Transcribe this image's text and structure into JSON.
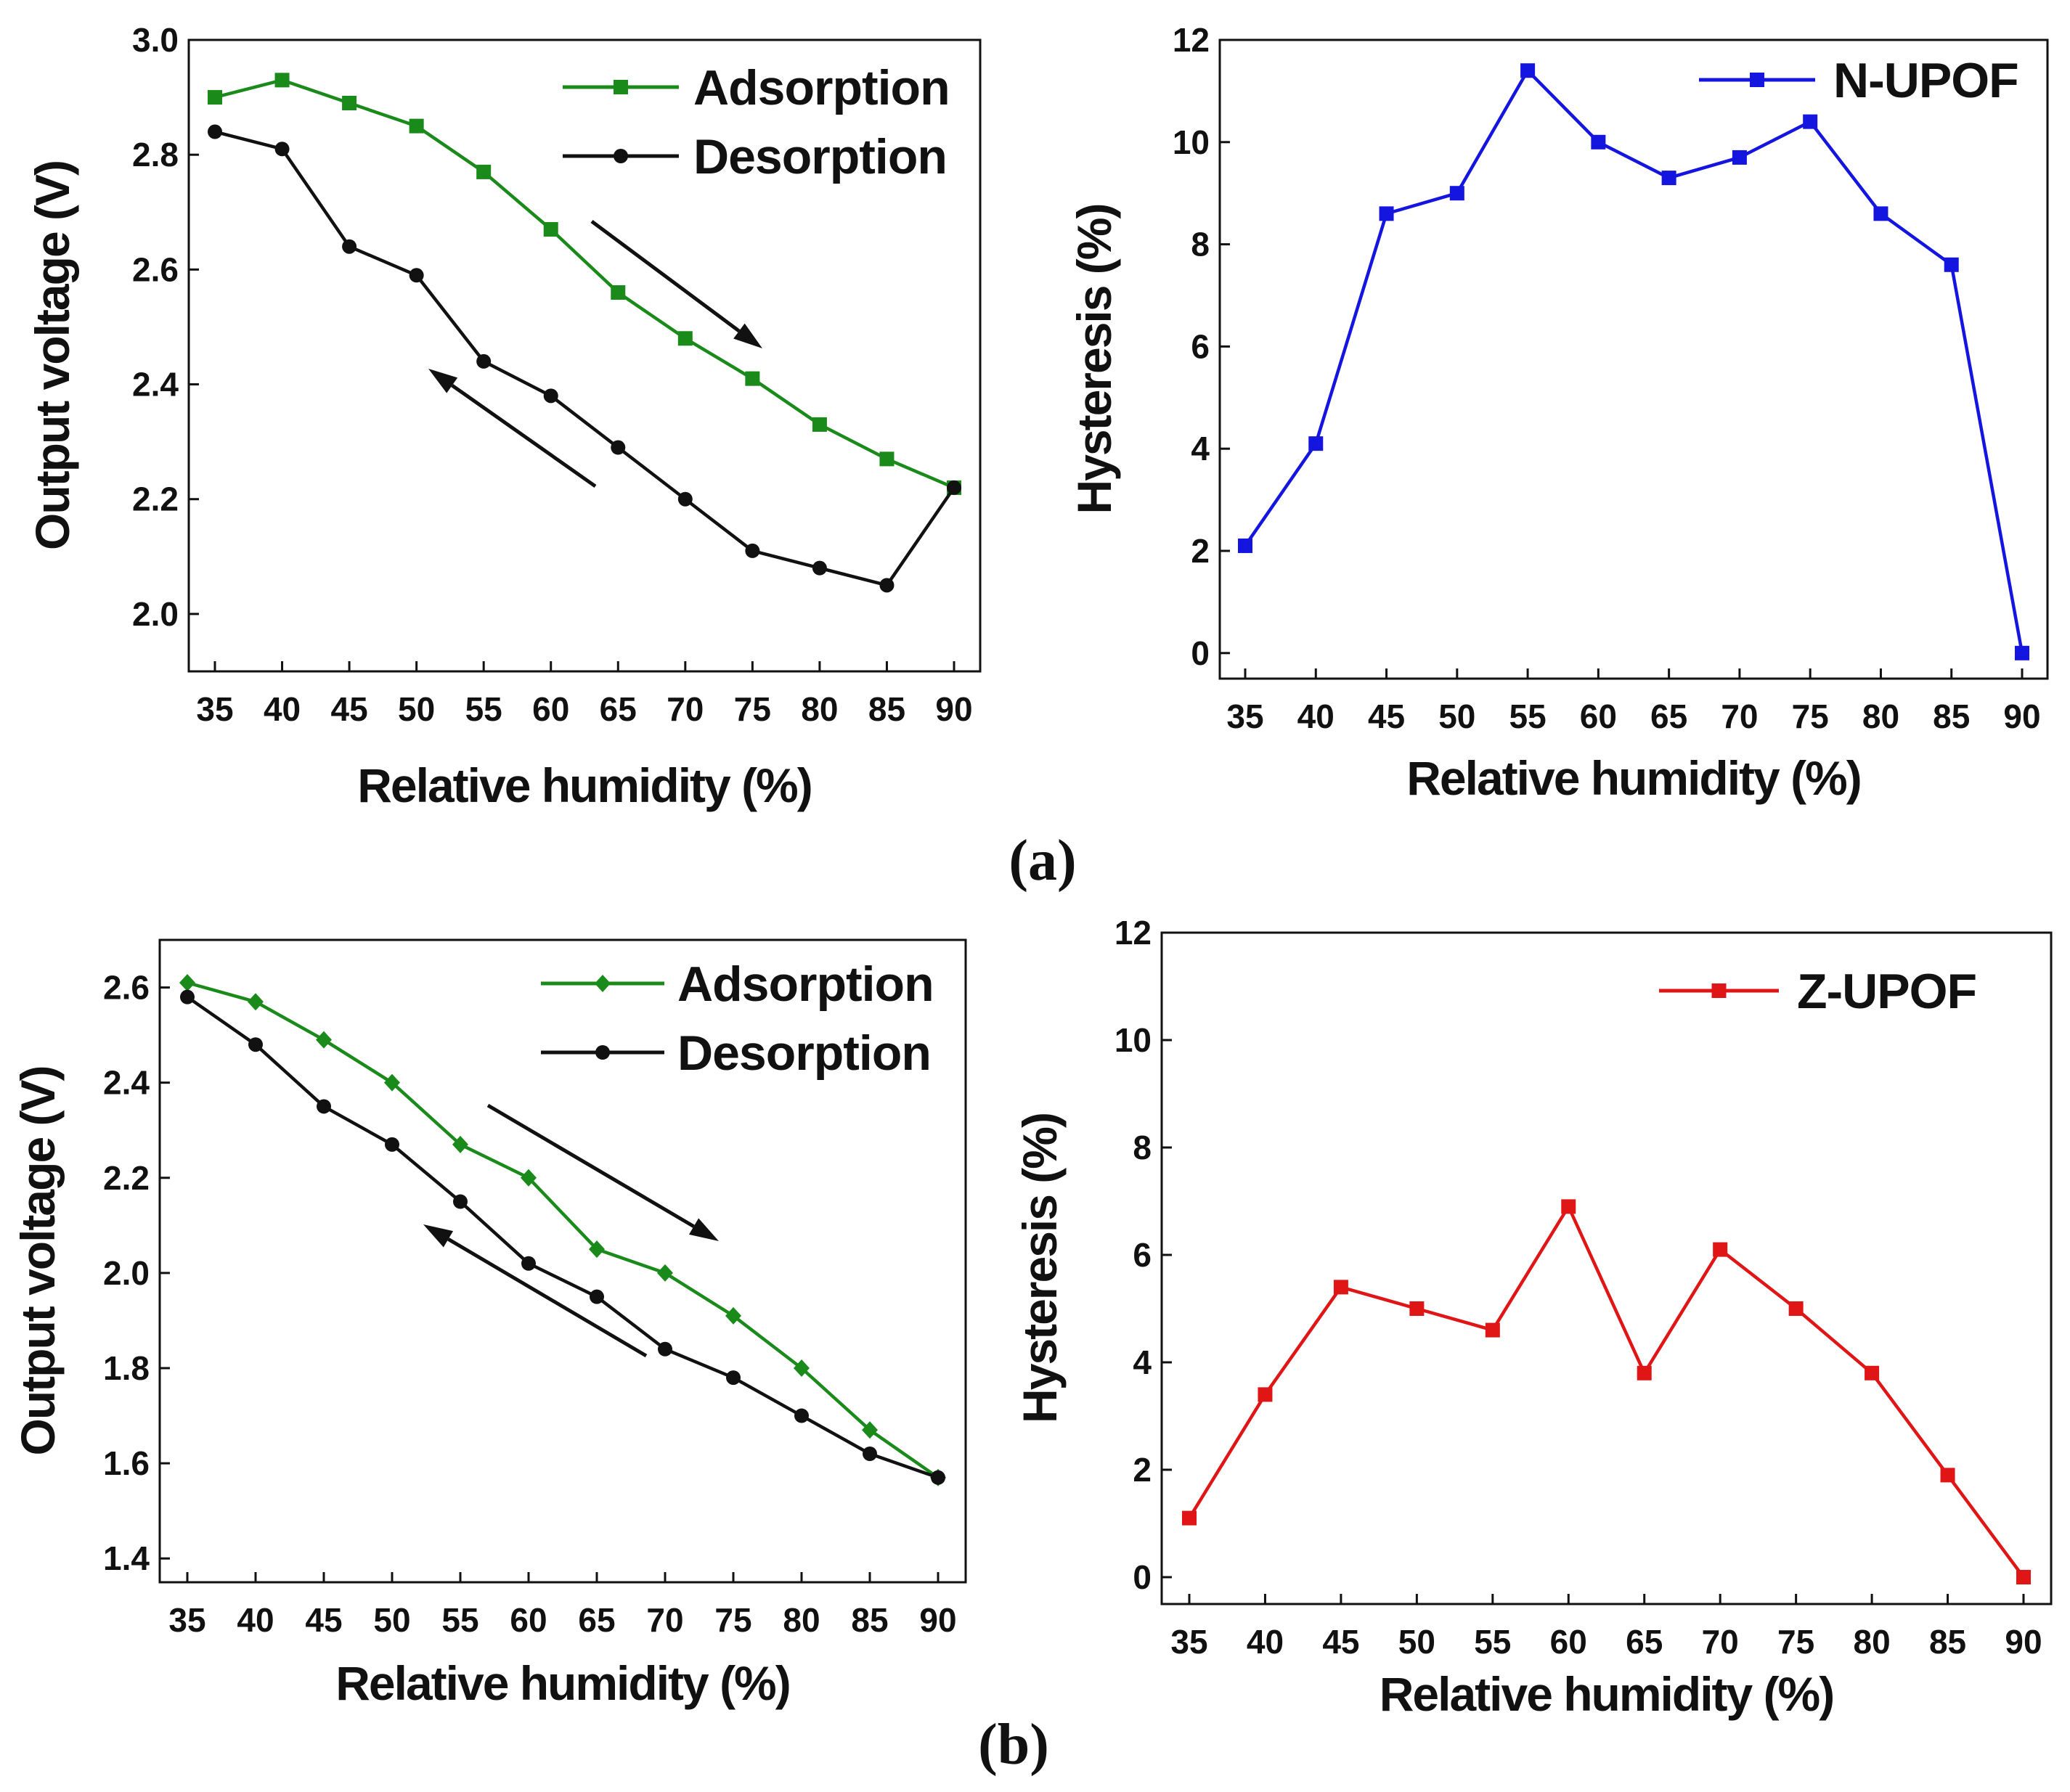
{
  "panel_labels": {
    "a": "(a)",
    "b": "(b)"
  },
  "chart_data": [
    {
      "id": "a-voltage",
      "type": "line",
      "xlabel": "Relative humidity (%)",
      "ylabel": "Output voltage (V)",
      "categories": [
        "35",
        "40",
        "45",
        "50",
        "55",
        "60",
        "65",
        "70",
        "75",
        "80",
        "85",
        "90"
      ],
      "x": [
        35,
        40,
        45,
        50,
        55,
        60,
        65,
        70,
        75,
        80,
        85,
        90
      ],
      "yticks": [
        "2.0",
        "2.2",
        "2.4",
        "2.6",
        "2.8",
        "3.0"
      ],
      "ylim": [
        1.9,
        3.0
      ],
      "legend_position": "top-right",
      "series": [
        {
          "name": "Adsorption",
          "color": "#1a8a1a",
          "marker": "square",
          "values": [
            2.9,
            2.93,
            2.89,
            2.85,
            2.77,
            2.67,
            2.56,
            2.48,
            2.41,
            2.33,
            2.27,
            2.22
          ]
        },
        {
          "name": "Desorption",
          "color": "#111111",
          "marker": "circle",
          "values": [
            2.84,
            2.81,
            2.64,
            2.59,
            2.44,
            2.38,
            2.29,
            2.2,
            2.11,
            2.08,
            2.05,
            2.22
          ]
        }
      ],
      "annotations": [
        {
          "type": "arrow",
          "direction": "down-right",
          "meaning": "increasing humidity (adsorption)"
        },
        {
          "type": "arrow",
          "direction": "up-left",
          "meaning": "decreasing humidity (desorption)"
        }
      ]
    },
    {
      "id": "a-hysteresis",
      "type": "line",
      "xlabel": "Relative humidity (%)",
      "ylabel": "Hysteresis (%)",
      "categories": [
        "35",
        "40",
        "45",
        "50",
        "55",
        "60",
        "65",
        "70",
        "75",
        "80",
        "85",
        "90"
      ],
      "x": [
        35,
        40,
        45,
        50,
        55,
        60,
        65,
        70,
        75,
        80,
        85,
        90
      ],
      "yticks": [
        "0",
        "2",
        "4",
        "6",
        "8",
        "10",
        "12"
      ],
      "ylim": [
        -0.5,
        12
      ],
      "legend_position": "top-right",
      "series": [
        {
          "name": "N-UPOF",
          "color": "#1515e0",
          "marker": "square",
          "values": [
            2.1,
            4.1,
            8.6,
            9.0,
            11.4,
            10.0,
            9.3,
            9.7,
            10.4,
            8.6,
            7.6,
            0.0
          ]
        }
      ]
    },
    {
      "id": "b-voltage",
      "type": "line",
      "xlabel": "Relative humidity (%)",
      "ylabel": "Output voltage (V)",
      "categories": [
        "35",
        "40",
        "45",
        "50",
        "55",
        "60",
        "65",
        "70",
        "75",
        "80",
        "85",
        "90"
      ],
      "x": [
        35,
        40,
        45,
        50,
        55,
        60,
        65,
        70,
        75,
        80,
        85,
        90
      ],
      "yticks": [
        "1.4",
        "1.6",
        "1.8",
        "2.0",
        "2.2",
        "2.4",
        "2.6"
      ],
      "ylim": [
        1.35,
        2.7
      ],
      "legend_position": "top-right",
      "series": [
        {
          "name": "Adsorption",
          "color": "#1a8a1a",
          "marker": "diamond",
          "values": [
            2.61,
            2.57,
            2.49,
            2.4,
            2.27,
            2.2,
            2.05,
            2.0,
            1.91,
            1.8,
            1.67,
            1.57
          ]
        },
        {
          "name": "Desorption",
          "color": "#111111",
          "marker": "circle",
          "values": [
            2.58,
            2.48,
            2.35,
            2.27,
            2.15,
            2.02,
            1.95,
            1.84,
            1.78,
            1.7,
            1.62,
            1.57
          ]
        }
      ],
      "annotations": [
        {
          "type": "arrow",
          "direction": "down-right",
          "meaning": "increasing humidity (adsorption)"
        },
        {
          "type": "arrow",
          "direction": "up-left",
          "meaning": "decreasing humidity (desorption)"
        }
      ]
    },
    {
      "id": "b-hysteresis",
      "type": "line",
      "xlabel": "Relative humidity (%)",
      "ylabel": "Hysteresis (%)",
      "categories": [
        "35",
        "40",
        "45",
        "50",
        "55",
        "60",
        "65",
        "70",
        "75",
        "80",
        "85",
        "90"
      ],
      "x": [
        35,
        40,
        45,
        50,
        55,
        60,
        65,
        70,
        75,
        80,
        85,
        90
      ],
      "yticks": [
        "0",
        "2",
        "4",
        "6",
        "8",
        "10",
        "12"
      ],
      "ylim": [
        -0.5,
        12
      ],
      "legend_position": "top-right",
      "series": [
        {
          "name": "Z-UPOF",
          "color": "#e01515",
          "marker": "square",
          "values": [
            1.1,
            3.4,
            5.4,
            5.0,
            4.6,
            6.9,
            3.8,
            6.1,
            5.0,
            3.8,
            1.9,
            0.0
          ]
        }
      ]
    }
  ]
}
